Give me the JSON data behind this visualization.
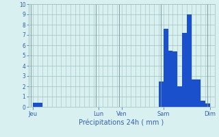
{
  "title": "Précipitations 24h ( mm )",
  "bar_color": "#1a50cc",
  "background_color": "#d8f0f0",
  "grid_color": "#a0bebe",
  "text_color": "#3060b0",
  "vline_color": "#709090",
  "ylim": [
    0,
    10
  ],
  "yticks": [
    0,
    1,
    2,
    3,
    4,
    5,
    6,
    7,
    8,
    9,
    10
  ],
  "bar_values": [
    0,
    0.4,
    0.4,
    0,
    0,
    0,
    0,
    0,
    0,
    0,
    0,
    0,
    0,
    0,
    0,
    0,
    0,
    0,
    0,
    0,
    0,
    0,
    0,
    0,
    0,
    0,
    0,
    0,
    2.5,
    7.6,
    5.5,
    5.4,
    2.0,
    7.2,
    9.0,
    2.7,
    2.7,
    0.6,
    0.35,
    0
  ],
  "n_bars": 40,
  "day_labels": [
    "Jeu",
    "Lun",
    "Ven",
    "Sam",
    "Dim"
  ],
  "day_positions": [
    0.5,
    14.5,
    19.5,
    28.5,
    38.5
  ],
  "vline_positions": [
    0.5,
    14.5,
    19.5,
    28.5,
    38.5
  ]
}
